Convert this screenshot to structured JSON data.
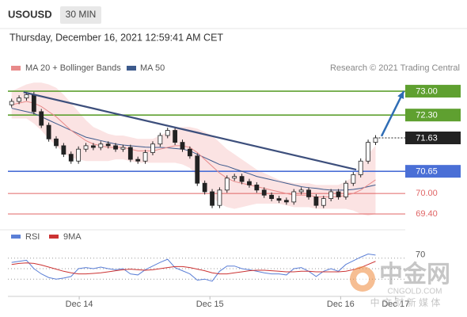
{
  "header": {
    "symbol": "USOUSD",
    "timeframe": "30 MIN",
    "datetime": "Thursday, December 16, 2021 12:59:41 AM CET"
  },
  "legend": {
    "items": [
      {
        "name": "MA 20 + Bollinger Bands",
        "color": "#e88a8a"
      },
      {
        "name": "MA 50",
        "color": "#3d5a8c"
      }
    ],
    "credit": "Research © 2021 Trading Central"
  },
  "watermark": {
    "name": "中金网",
    "url": "CNGOLD.COM",
    "tagline": "中 文 财 新 媒 体"
  },
  "chart_data": [
    {
      "type": "candlestick",
      "xlim": [
        -0.5,
        53
      ],
      "ylim": [
        69.05,
        73.35
      ],
      "candles": {
        "open": [
          72.6,
          72.7,
          72.8,
          72.9,
          72.4,
          72.0,
          71.6,
          71.4,
          71.15,
          70.95,
          71.3,
          71.4,
          71.35,
          71.45,
          71.4,
          71.3,
          71.35,
          71.0,
          70.95,
          71.2,
          71.45,
          71.7,
          71.85,
          71.5,
          71.3,
          71.1,
          70.3,
          70.05,
          69.65,
          70.1,
          70.45,
          70.5,
          70.35,
          70.25,
          70.1,
          69.95,
          69.85,
          69.8,
          69.75,
          70.05,
          70.1,
          69.9,
          69.65,
          69.85,
          70.05,
          69.9,
          70.3,
          70.55,
          70.95,
          71.5
        ],
        "high": [
          72.78,
          72.88,
          72.98,
          72.98,
          72.48,
          72.08,
          71.68,
          71.48,
          71.23,
          71.38,
          71.48,
          71.48,
          71.53,
          71.53,
          71.48,
          71.43,
          71.43,
          71.08,
          71.28,
          71.53,
          71.78,
          71.93,
          71.93,
          71.58,
          71.38,
          71.18,
          70.38,
          70.13,
          70.18,
          70.53,
          70.58,
          70.58,
          70.43,
          70.33,
          70.18,
          70.03,
          69.93,
          69.88,
          70.13,
          70.18,
          70.18,
          69.98,
          69.93,
          70.13,
          70.13,
          70.38,
          70.63,
          71.03,
          71.58,
          71.71
        ],
        "low": [
          72.52,
          72.62,
          72.72,
          72.32,
          71.92,
          71.52,
          71.32,
          71.07,
          70.87,
          70.87,
          71.22,
          71.27,
          71.27,
          71.32,
          71.22,
          71.22,
          70.92,
          70.87,
          70.87,
          71.12,
          71.37,
          71.62,
          71.42,
          71.22,
          71.02,
          70.22,
          69.97,
          69.57,
          69.57,
          70.02,
          70.37,
          70.27,
          70.17,
          70.02,
          69.87,
          69.77,
          69.72,
          69.67,
          69.67,
          69.97,
          69.82,
          69.57,
          69.57,
          69.77,
          69.82,
          69.82,
          70.22,
          70.47,
          70.87,
          71.42
        ],
        "close": [
          72.7,
          72.8,
          72.9,
          72.4,
          72.0,
          71.6,
          71.4,
          71.15,
          70.95,
          71.3,
          71.4,
          71.35,
          71.45,
          71.4,
          71.3,
          71.35,
          71.0,
          70.95,
          71.2,
          71.45,
          71.7,
          71.85,
          71.5,
          71.3,
          71.1,
          70.3,
          70.05,
          69.65,
          70.1,
          70.45,
          70.5,
          70.35,
          70.25,
          70.1,
          69.95,
          69.85,
          69.8,
          69.75,
          70.05,
          70.1,
          69.9,
          69.65,
          69.85,
          70.05,
          69.9,
          70.3,
          70.55,
          70.95,
          71.5,
          71.63
        ]
      },
      "ma20": [
        72.6,
        72.65,
        72.7,
        72.65,
        72.55,
        72.4,
        72.25,
        72.05,
        71.85,
        71.7,
        71.55,
        71.45,
        71.4,
        71.35,
        71.35,
        71.35,
        71.3,
        71.25,
        71.25,
        71.25,
        71.3,
        71.35,
        71.4,
        71.4,
        71.35,
        71.2,
        71.0,
        70.8,
        70.6,
        70.45,
        70.35,
        70.3,
        70.25,
        70.2,
        70.15,
        70.1,
        70.05,
        70.0,
        69.95,
        69.95,
        69.95,
        69.9,
        69.9,
        69.9,
        69.9,
        69.95,
        70.0,
        70.1,
        70.25,
        70.4
      ],
      "bb_upper": [
        73.0,
        73.1,
        73.2,
        73.25,
        73.25,
        73.2,
        73.1,
        72.9,
        72.65,
        72.4,
        72.15,
        71.95,
        71.85,
        71.75,
        71.7,
        71.7,
        71.65,
        71.6,
        71.6,
        71.6,
        71.7,
        71.8,
        71.9,
        71.95,
        71.95,
        71.9,
        71.8,
        71.7,
        71.5,
        71.3,
        71.15,
        71.0,
        70.85,
        70.7,
        70.6,
        70.5,
        70.4,
        70.35,
        70.3,
        70.3,
        70.3,
        70.25,
        70.25,
        70.25,
        70.25,
        70.35,
        70.5,
        70.8,
        71.15,
        71.4
      ],
      "bb_lower": [
        72.2,
        72.2,
        72.2,
        72.05,
        71.85,
        71.6,
        71.4,
        71.2,
        71.05,
        71.0,
        70.95,
        70.95,
        70.95,
        70.95,
        71.0,
        71.0,
        70.95,
        70.9,
        70.9,
        70.9,
        70.9,
        70.9,
        70.9,
        70.85,
        70.75,
        70.5,
        70.2,
        69.9,
        69.7,
        69.6,
        69.55,
        69.6,
        69.65,
        69.7,
        69.7,
        69.7,
        69.7,
        69.65,
        69.6,
        69.6,
        69.6,
        69.55,
        69.55,
        69.55,
        69.55,
        69.55,
        69.5,
        69.4,
        69.35,
        69.4
      ],
      "ma50": [
        72.5,
        72.45,
        72.4,
        72.35,
        72.25,
        72.15,
        72.05,
        71.95,
        71.85,
        71.75,
        71.65,
        71.6,
        71.55,
        71.5,
        71.45,
        71.42,
        71.4,
        71.38,
        71.36,
        71.35,
        71.35,
        71.34,
        71.32,
        71.3,
        71.25,
        71.15,
        71.05,
        70.95,
        70.85,
        70.8,
        70.72,
        70.65,
        70.58,
        70.5,
        70.45,
        70.4,
        70.35,
        70.3,
        70.25,
        70.2,
        70.17,
        70.15,
        70.12,
        70.1,
        70.1,
        70.1,
        70.12,
        70.15,
        70.2,
        70.25
      ],
      "trendline": {
        "x": [
          1.6,
          46.4
        ],
        "values": [
          72.97,
          70.7
        ],
        "color": "#3d4f7c"
      },
      "arrow": {
        "x": [
          49.8,
          52.8
        ],
        "values": [
          71.68,
          73.0
        ],
        "color": "#2f6db5"
      },
      "levels": [
        {
          "value": 73,
          "label": "73.00",
          "color": "#5fa030",
          "style": "box"
        },
        {
          "value": 72.3,
          "label": "72.30",
          "color": "#5fa030",
          "style": "box"
        },
        {
          "value": 71.63,
          "label": "71.63",
          "color": "#222222",
          "style": "current"
        },
        {
          "value": 70.65,
          "label": "70.65",
          "color": "#4a6fd6",
          "style": "box"
        },
        {
          "value": 70,
          "label": "70.00",
          "color": "#e06666",
          "style": "text"
        },
        {
          "value": 69.4,
          "label": "69.40",
          "color": "#e06666",
          "style": "text"
        }
      ]
    },
    {
      "type": "line",
      "xlim": [
        -0.5,
        53
      ],
      "ylim": [
        0,
        100
      ],
      "yticks": [
        70
      ],
      "gridlines": [
        70,
        50,
        30
      ],
      "xticks": [
        {
          "value": 9.1,
          "label": "Dec 14"
        },
        {
          "value": 26.7,
          "label": "Dec 15"
        },
        {
          "value": 44.3,
          "label": "Dec 16"
        },
        {
          "value": 51.7,
          "label": "Dec 17"
        }
      ],
      "series": [
        {
          "name": "RSI",
          "color": "#5b7fd6",
          "values": [
            62,
            64,
            66,
            50,
            40,
            33,
            30,
            32,
            35,
            50,
            52,
            50,
            53,
            50,
            48,
            50,
            40,
            38,
            48,
            55,
            62,
            68,
            52,
            46,
            40,
            28,
            30,
            26,
            45,
            55,
            55,
            50,
            48,
            45,
            42,
            40,
            40,
            38,
            50,
            52,
            45,
            35,
            45,
            50,
            45,
            58,
            65,
            72,
            78,
            76
          ]
        },
        {
          "name": "9MA",
          "color": "#cc3333",
          "values": [
            58,
            60,
            61,
            60,
            57,
            53,
            49,
            45,
            42,
            40,
            40,
            41,
            42,
            44,
            46,
            48,
            49,
            48,
            47,
            48,
            50,
            52,
            54,
            54,
            52,
            49,
            46,
            42,
            40,
            40,
            42,
            44,
            46,
            47,
            47,
            46,
            45,
            44,
            44,
            45,
            45,
            44,
            44,
            44,
            44,
            45,
            48,
            52,
            58,
            64
          ]
        }
      ]
    }
  ]
}
